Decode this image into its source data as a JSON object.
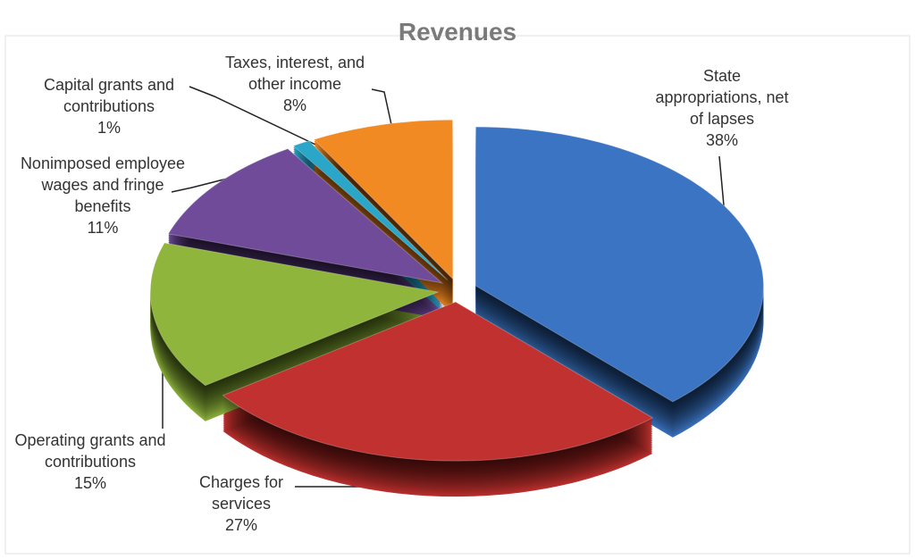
{
  "chart_data": {
    "type": "pie",
    "title": "Revenues",
    "categories": [
      "State appropriations, net of lapses",
      "Charges for services",
      "Operating grants and contributions",
      "Nonimposed employee wages and fringe benefits",
      "Capital grants and contributions",
      "Taxes, interest, and other income"
    ],
    "values": [
      38,
      27,
      15,
      11,
      1,
      8
    ],
    "value_labels": [
      "38%",
      "27%",
      "15%",
      "11%",
      "1%",
      "8%"
    ],
    "colors": [
      "#3b74c2",
      "#c0312f",
      "#8fb53d",
      "#6f4b9a",
      "#2aa6c8",
      "#f28a24"
    ]
  }
}
